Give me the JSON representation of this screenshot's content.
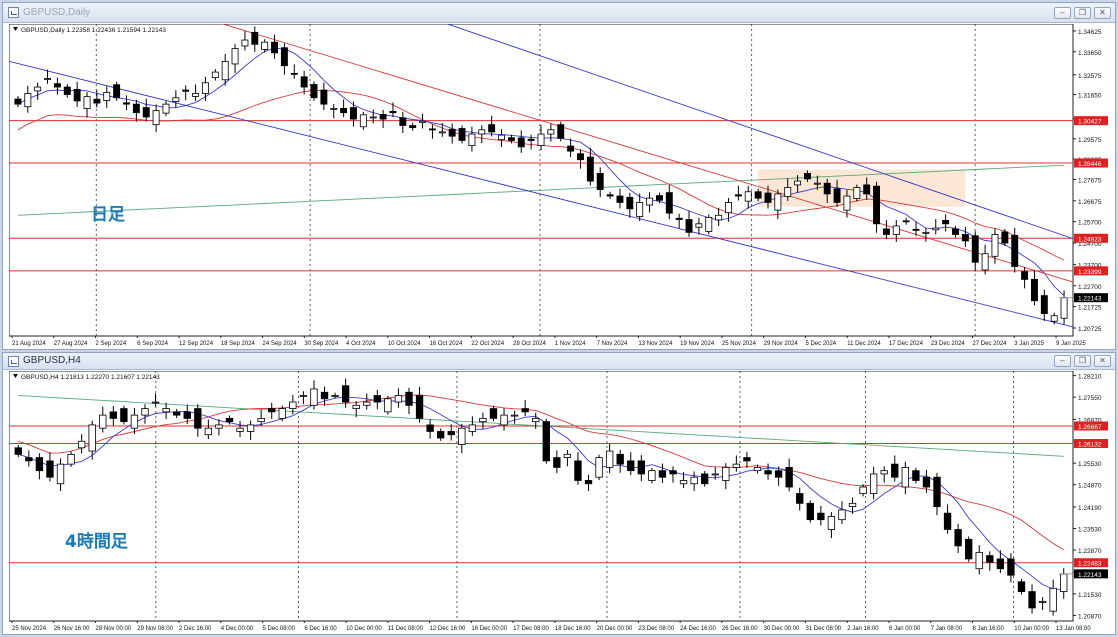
{
  "window_top": {
    "title": "GBPUSD,Daily",
    "controls": [
      "minimize",
      "restore",
      "close"
    ]
  },
  "window_bottom": {
    "title": "GBPUSD,H4",
    "controls": [
      "minimize",
      "restore",
      "close"
    ]
  },
  "colors": {
    "ma_fast": "#3b3bd6",
    "ma_mid": "#d63a3a",
    "ma_slow": "#5aa878",
    "channel": "#3535c8",
    "level_line": "#e03030",
    "level_badge": "#e02020",
    "current_badge": "#000000",
    "annotation_text": "#1a7ab8",
    "zone_fill": "#fbe3cf",
    "candle_up": "#ffffff",
    "candle_down": "#000000"
  },
  "chart_data": [
    {
      "type": "candlestick",
      "symbol_line": "GBPUSD,Daily 1.22358 1.22436 1.21594 1.22143",
      "annotation": "日足",
      "x_labels": [
        "21 Aug 2024",
        "27 Aug 2024",
        "2 Sep 2024",
        "6 Sep 2024",
        "12 Sep 2024",
        "18 Sep 2024",
        "24 Sep 2024",
        "30 Sep 2024",
        "4 Oct 2024",
        "10 Oct 2024",
        "16 Oct 2024",
        "22 Oct 2024",
        "28 Oct 2024",
        "1 Nov 2024",
        "7 Nov 2024",
        "13 Nov 2024",
        "19 Nov 2024",
        "25 Nov 2024",
        "29 Nov 2024",
        "5 Dec 2024",
        "11 Dec 2024",
        "17 Dec 2024",
        "23 Dec 2024",
        "27 Dec 2024",
        "3 Jan 2025",
        "9 Jan 2025"
      ],
      "y_ticks": [
        "1.34625",
        "1.33650",
        "1.32575",
        "1.31650",
        "1.30525",
        "1.29575",
        "1.28625",
        "1.27675",
        "1.26675",
        "1.25700",
        "1.24700",
        "1.23700",
        "1.22700",
        "1.21725",
        "1.20725"
      ],
      "ylim": [
        1.2035,
        1.3495
      ],
      "level_lines": [
        {
          "value": 1.30427,
          "label": "1.30427"
        },
        {
          "value": 1.28446,
          "label": "1.28446"
        },
        {
          "value": 1.24923,
          "label": "1.24923"
        },
        {
          "value": 1.23399,
          "label": "1.23399"
        }
      ],
      "current_price": {
        "value": 1.22143,
        "label": "1.22143"
      },
      "closes": [
        1.312,
        1.317,
        1.32,
        1.324,
        1.32,
        1.3165,
        1.3135,
        1.3155,
        1.3125,
        1.3175,
        1.315,
        1.312,
        1.308,
        1.306,
        1.309,
        1.312,
        1.315,
        1.318,
        1.317,
        1.322,
        1.327,
        1.332,
        1.338,
        1.342,
        1.34,
        1.341,
        1.336,
        1.33,
        1.326,
        1.32,
        1.315,
        1.312,
        1.31,
        1.308,
        1.305,
        1.307,
        1.306,
        1.305,
        1.308,
        1.302,
        1.301,
        1.304,
        1.3,
        1.299,
        1.297,
        1.295,
        1.298,
        1.3,
        1.299,
        1.2975,
        1.295,
        1.292,
        1.295,
        1.298,
        1.3,
        1.296,
        1.29,
        1.286,
        1.276,
        1.272,
        1.269,
        1.266,
        1.263,
        1.266,
        1.268,
        1.267,
        1.261,
        1.258,
        1.252,
        1.256,
        1.259,
        1.26,
        1.266,
        1.269,
        1.271,
        1.268,
        1.266,
        1.27,
        1.273,
        1.276,
        1.277,
        1.275,
        1.27,
        1.266,
        1.269,
        1.273,
        1.27,
        1.256,
        1.251,
        1.255,
        1.257,
        1.253,
        1.252,
        1.254,
        1.256,
        1.251,
        1.248,
        1.238,
        1.242,
        1.251,
        1.247,
        1.236,
        1.23,
        1.22,
        1.214,
        1.213,
        1.2214
      ],
      "series": [
        {
          "name": "",
          "role": "ma_fast"
        },
        {
          "name": "",
          "role": "ma_mid"
        },
        {
          "name": "",
          "role": "ma_slow"
        }
      ],
      "zone": {
        "from_index": 75,
        "to_index": 96,
        "price_low": 1.264,
        "price_high": 1.2815
      },
      "channel_lines": [
        {
          "i1": 0,
          "p1": 1.331,
          "i2": 106,
          "p2": 1.2088
        },
        {
          "i1": 47,
          "p1": 1.344,
          "i2": 106,
          "p2": 1.2505
        },
        {
          "i1": 14,
          "p1": 1.359,
          "i2": 106,
          "p2": 1.23
        }
      ]
    },
    {
      "type": "candlestick",
      "symbol_line": "GBPUSD,H4 1.21813 1.22270 1.21607 1.22143",
      "annotation": "4時間足",
      "x_labels": [
        "25 Nov 2024",
        "26 Nov 16:00",
        "28 Nov 00:00",
        "29 Nov 08:00",
        "2 Dec 16:00",
        "4 Dec 00:00",
        "5 Dec 08:00",
        "6 Dec 16:00",
        "10 Dec 00:00",
        "11 Dec 08:00",
        "12 Dec 16:00",
        "16 Dec 00:00",
        "17 Dec 08:00",
        "18 Dec 16:00",
        "20 Dec 00:00",
        "23 Dec 08:00",
        "24 Dec 16:00",
        "26 Dec 16:00",
        "30 Dec 00:00",
        "31 Dec 08:00",
        "2 Jan 16:00",
        "6 Jan 00:00",
        "7 Jan 08:00",
        "8 Jan 16:00",
        "10 Jan 00:00",
        "13 Jan 08:00"
      ],
      "y_ticks": [
        "1.28210",
        "1.27550",
        "1.26870",
        "1.26195",
        "1.25530",
        "1.24870",
        "1.24190",
        "1.23530",
        "1.22870",
        "1.22190",
        "1.21530",
        "1.20870"
      ],
      "ylim": [
        1.207,
        1.2835
      ],
      "level_lines": [
        {
          "value": 1.26667,
          "label": "1.26667"
        },
        {
          "value": 1.26132,
          "label": "1.26132"
        },
        {
          "value": 1.22483,
          "label": "1.22483"
        }
      ],
      "current_price": {
        "value": 1.22143,
        "label": "1.22143"
      },
      "closes": [
        1.258,
        1.256,
        1.253,
        1.251,
        1.255,
        1.258,
        1.262,
        1.267,
        1.27,
        1.269,
        1.268,
        1.27,
        1.272,
        1.274,
        1.272,
        1.27,
        1.269,
        1.266,
        1.266,
        1.267,
        1.268,
        1.266,
        1.267,
        1.269,
        1.271,
        1.272,
        1.274,
        1.276,
        1.278,
        1.275,
        1.276,
        1.274,
        1.273,
        1.274,
        1.274,
        1.275,
        1.276,
        1.273,
        1.269,
        1.265,
        1.263,
        1.264,
        1.266,
        1.267,
        1.269,
        1.269,
        1.27,
        1.27,
        1.271,
        1.269,
        1.256,
        1.254,
        1.258,
        1.25,
        1.249,
        1.257,
        1.259,
        1.255,
        1.253,
        1.252,
        1.253,
        1.251,
        1.252,
        1.25,
        1.251,
        1.249,
        1.252,
        1.254,
        1.255,
        1.256,
        1.254,
        1.252,
        1.251,
        1.248,
        1.243,
        1.238,
        1.238,
        1.239,
        1.241,
        1.243,
        1.248,
        1.252,
        1.253,
        1.251,
        1.254,
        1.25,
        1.248,
        1.242,
        1.235,
        1.23,
        1.226,
        1.228,
        1.225,
        1.223,
        1.221,
        1.216,
        1.211,
        1.213,
        1.217,
        1.2214
      ],
      "series": [
        {
          "name": "",
          "role": "ma_fast"
        },
        {
          "name": "",
          "role": "ma_mid"
        },
        {
          "name": "",
          "role": "ma_slow"
        }
      ]
    }
  ]
}
